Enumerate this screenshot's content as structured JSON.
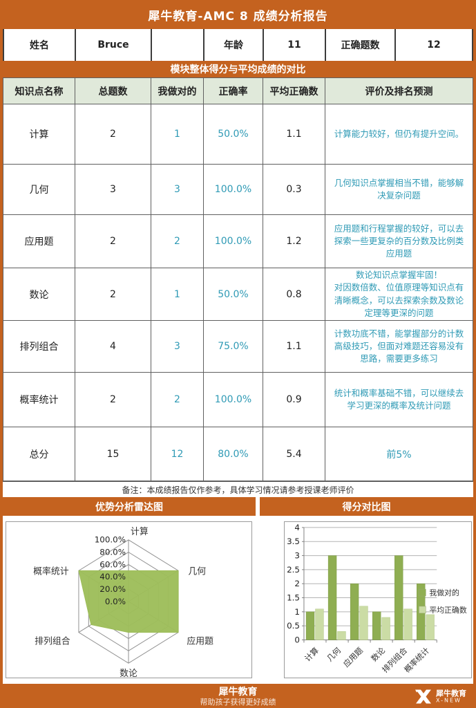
{
  "title": "犀牛教育-AMC 8 成绩分析报告",
  "info_cells": [
    {
      "text": "姓名",
      "kind": "lab"
    },
    {
      "text": "Bruce",
      "kind": "val"
    },
    {
      "text": "",
      "kind": "val"
    },
    {
      "text": "年龄",
      "kind": "lab"
    },
    {
      "text": "11",
      "kind": "val"
    },
    {
      "text": "正确题数",
      "kind": "lab"
    },
    {
      "text": "12",
      "kind": "val"
    }
  ],
  "section_banner": "模块整体得分与平均成绩的对比",
  "table": {
    "headers": [
      "知识点名称",
      "总题数",
      "我做对的",
      "正确率",
      "平均正确数",
      "评价及排名预测"
    ],
    "rows": [
      {
        "name": "计算",
        "total": "2",
        "mine": "1",
        "rate": "50.0%",
        "avg": "1.1",
        "comment": "计算能力较好，但仍有提升空间。"
      },
      {
        "name": "几何",
        "total": "3",
        "mine": "3",
        "rate": "100.0%",
        "avg": "0.3",
        "comment": "几何知识点掌握相当不错，能够解决复杂问题"
      },
      {
        "name": "应用题",
        "total": "2",
        "mine": "2",
        "rate": "100.0%",
        "avg": "1.2",
        "comment": "应用题和行程掌握的较好，可以去探索一些更复杂的百分数及比例类应用题"
      },
      {
        "name": "数论",
        "total": "2",
        "mine": "1",
        "rate": "50.0%",
        "avg": "0.8",
        "comment": "数论知识点掌握牢固！\n对因数倍数、位值原理等知识点有清晰概念，可以去探索余数及数论定理等更深的问题"
      },
      {
        "name": "排列组合",
        "total": "4",
        "mine": "3",
        "rate": "75.0%",
        "avg": "1.1",
        "comment": "计数功底不错，能掌握部分的计数高级技巧，但面对难题还容易没有思路，需要更多练习"
      },
      {
        "name": "概率统计",
        "total": "2",
        "mine": "2",
        "rate": "100.0%",
        "avg": "0.9",
        "comment": "统计和概率基础不错，可以继续去学习更深的概率及统计问题"
      },
      {
        "name": "总分",
        "total": "15",
        "mine": "12",
        "rate": "80.0%",
        "avg": "5.4",
        "comment": "前5%"
      }
    ],
    "note": "备注：本成绩报告仅作参考，具体学习情况请参考授课老师评价"
  },
  "charts": {
    "radar_title": "优势分析雷达图",
    "bar_title": "得分对比图"
  },
  "chart_data": [
    {
      "type": "radar",
      "title": "优势分析雷达图",
      "categories": [
        "计算",
        "几何",
        "应用题",
        "数论",
        "排列组合",
        "概率统计"
      ],
      "series": [
        {
          "name": "正确率",
          "values": [
            50,
            100,
            100,
            50,
            75,
            100
          ]
        }
      ],
      "rlim": [
        0,
        100
      ],
      "tick_labels": [
        "100.0%",
        "80.0%",
        "60.0%",
        "40.0%",
        "20.0%",
        "0.0%"
      ],
      "fill_color": "#9dbd59",
      "grid": true
    },
    {
      "type": "bar",
      "title": "得分对比图",
      "categories": [
        "计算",
        "几何",
        "应用题",
        "数论",
        "排列组合",
        "概率统计"
      ],
      "series": [
        {
          "name": "我做对的",
          "values": [
            1,
            3,
            2,
            1,
            3,
            2
          ],
          "color": "#8fae52"
        },
        {
          "name": "平均正确数",
          "values": [
            1.1,
            0.3,
            1.2,
            0.8,
            1.1,
            0.9
          ],
          "color": "#cbdca5"
        }
      ],
      "ylim": [
        0,
        4
      ],
      "ytick_step": 0.5,
      "legend_position": "right",
      "grid": true
    }
  ],
  "footer": {
    "brand": "犀牛教育",
    "slogan": "帮助孩子获得更好成绩",
    "logo_cn": "犀牛教育",
    "logo_en": "X-NEW"
  },
  "colors": {
    "accent_orange": "#c4621f",
    "table_header_green": "#e0e9da",
    "teal_text": "#2f9ab5",
    "radar_fill": "#9dbd59",
    "bar_dark_green": "#8fae52",
    "bar_light_green": "#cbdca5"
  }
}
